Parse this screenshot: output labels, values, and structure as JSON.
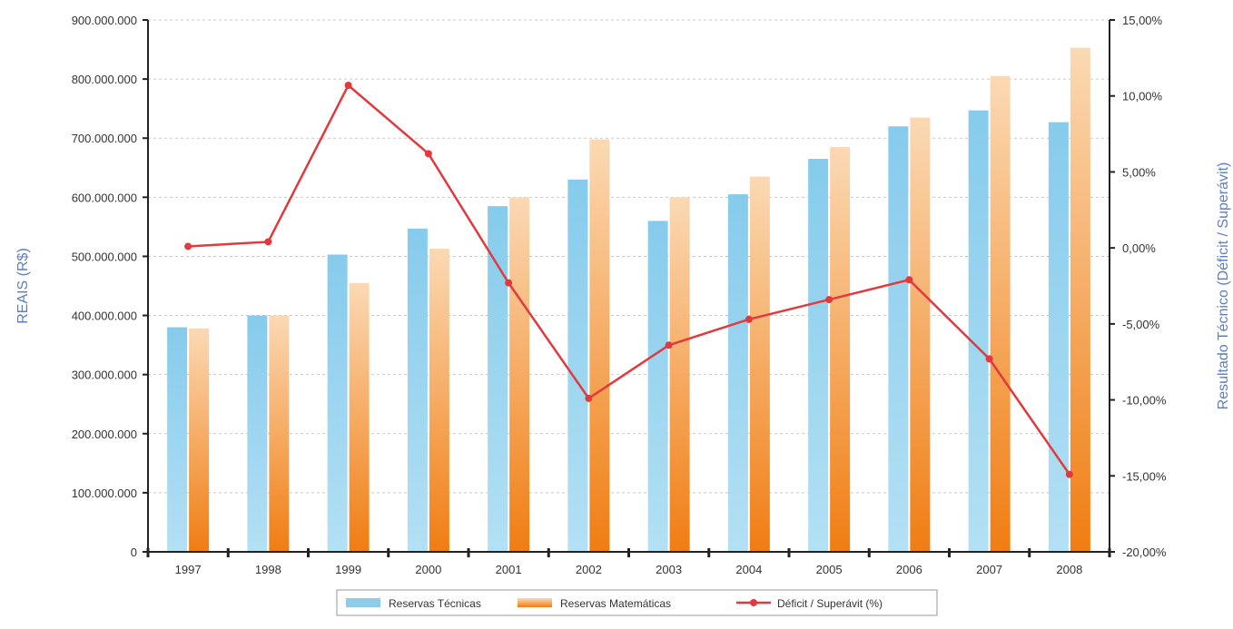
{
  "chart_data": {
    "type": "bar",
    "categories": [
      "1997",
      "1998",
      "1999",
      "2000",
      "2001",
      "2002",
      "2003",
      "2004",
      "2005",
      "2006",
      "2007",
      "2008"
    ],
    "series": [
      {
        "name": "Reservas Técnicas",
        "type": "bar",
        "axis": "left",
        "color": "#8ecdea",
        "values": [
          380000000,
          400000000,
          503000000,
          547000000,
          585000000,
          630000000,
          560000000,
          605000000,
          665000000,
          720000000,
          747000000,
          727000000
        ]
      },
      {
        "name": "Reservas Matemáticas",
        "type": "bar",
        "axis": "left",
        "color": "#f08a24",
        "values": [
          378000000,
          400000000,
          455000000,
          513000000,
          600000000,
          698000000,
          600000000,
          635000000,
          685000000,
          735000000,
          805000000,
          853000000
        ]
      },
      {
        "name": "Déficit / Superávit (%)",
        "type": "line",
        "axis": "right",
        "color": "#e03a3e",
        "values": [
          0.001,
          0.004,
          0.107,
          0.062,
          -0.023,
          -0.099,
          -0.064,
          -0.047,
          -0.034,
          -0.021,
          -0.073,
          -0.149
        ]
      }
    ],
    "ylabel": "REAIS (R$)",
    "y2label": "Resultado Técnico (Déficit / Superávit)",
    "ylim": [
      0,
      900000000
    ],
    "y2lim": [
      -0.2,
      0.15
    ],
    "yticks": [
      "0",
      "100.000.000",
      "200.000.000",
      "300.000.000",
      "400.000.000",
      "500.000.000",
      "600.000.000",
      "700.000.000",
      "800.000.000",
      "900.000.000"
    ],
    "y2ticks": [
      "-20,00%",
      "-15,00%",
      "-10,00%",
      "-5,00%",
      "0,00%",
      "5,00%",
      "10,00%",
      "15,00%"
    ],
    "grid": true,
    "legend_position": "bottom"
  }
}
